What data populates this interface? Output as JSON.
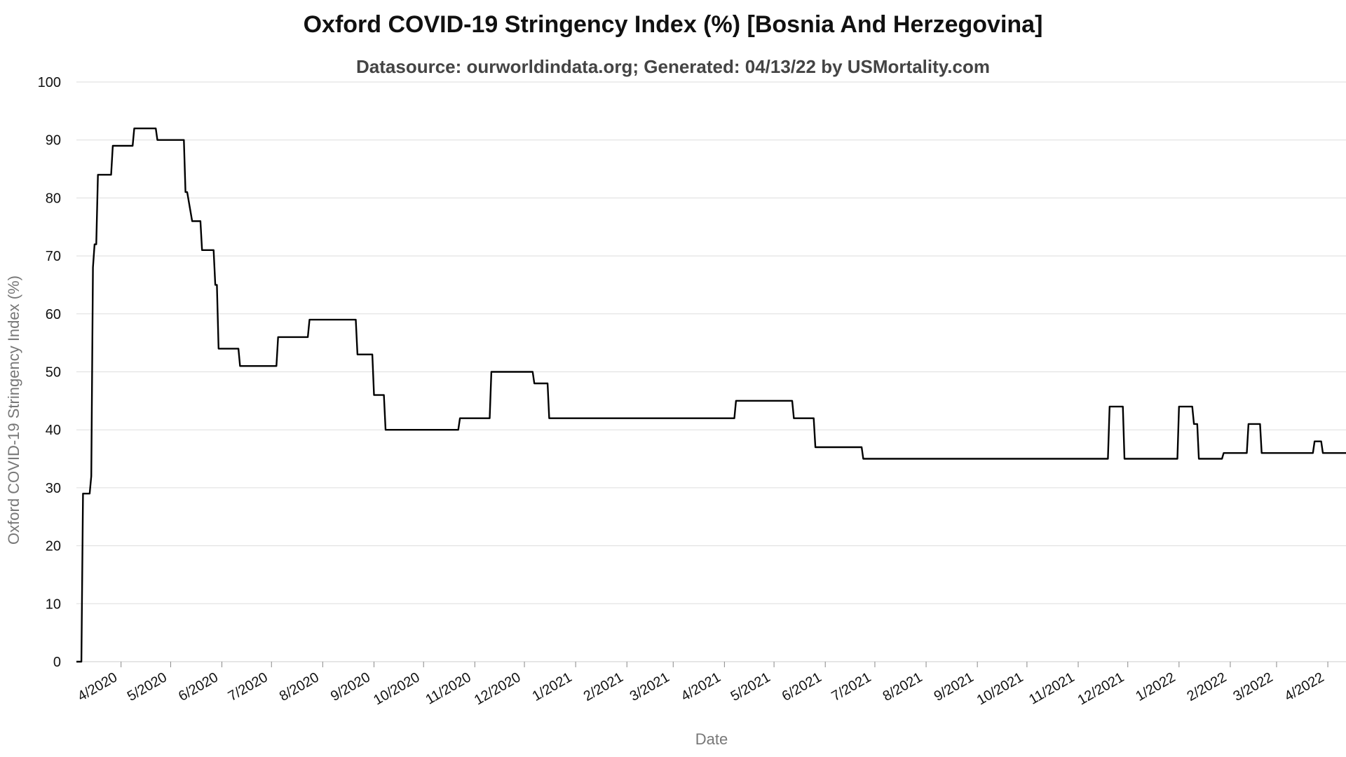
{
  "title": "Oxford COVID-19 Stringency Index (%) [Bosnia And Herzegovina]",
  "subtitle": "Datasource: ourworldindata.org; Generated: 04/13/22 by USMortality.com",
  "colors": {
    "line": "#000000",
    "grid": "#dddddd",
    "axis_title": "#777777"
  },
  "chart_data": {
    "type": "line",
    "title": "Oxford COVID-19 Stringency Index (%) [Bosnia And Herzegovina]",
    "xlabel": "Date",
    "ylabel": "Oxford COVID-19 Stringency Index (%)",
    "ylim": [
      0,
      100
    ],
    "xlim": [
      "2020-03-05",
      "2022-04-12"
    ],
    "yticks": [
      0,
      10,
      20,
      30,
      40,
      50,
      60,
      70,
      80,
      90,
      100
    ],
    "xticks": [
      {
        "date": "2020-04-01",
        "label": "4/2020"
      },
      {
        "date": "2020-05-01",
        "label": "5/2020"
      },
      {
        "date": "2020-06-01",
        "label": "6/2020"
      },
      {
        "date": "2020-07-01",
        "label": "7/2020"
      },
      {
        "date": "2020-08-01",
        "label": "8/2020"
      },
      {
        "date": "2020-09-01",
        "label": "9/2020"
      },
      {
        "date": "2020-10-01",
        "label": "10/2020"
      },
      {
        "date": "2020-11-01",
        "label": "11/2020"
      },
      {
        "date": "2020-12-01",
        "label": "12/2020"
      },
      {
        "date": "2021-01-01",
        "label": "1/2021"
      },
      {
        "date": "2021-02-01",
        "label": "2/2021"
      },
      {
        "date": "2021-03-01",
        "label": "3/2021"
      },
      {
        "date": "2021-04-01",
        "label": "4/2021"
      },
      {
        "date": "2021-05-01",
        "label": "5/2021"
      },
      {
        "date": "2021-06-01",
        "label": "6/2021"
      },
      {
        "date": "2021-07-01",
        "label": "7/2021"
      },
      {
        "date": "2021-08-01",
        "label": "8/2021"
      },
      {
        "date": "2021-09-01",
        "label": "9/2021"
      },
      {
        "date": "2021-10-01",
        "label": "10/2021"
      },
      {
        "date": "2021-11-01",
        "label": "11/2021"
      },
      {
        "date": "2021-12-01",
        "label": "12/2021"
      },
      {
        "date": "2022-01-01",
        "label": "1/2022"
      },
      {
        "date": "2022-02-01",
        "label": "2/2022"
      },
      {
        "date": "2022-03-01",
        "label": "3/2022"
      },
      {
        "date": "2022-04-01",
        "label": "4/2022"
      }
    ],
    "grid": true,
    "series": [
      {
        "points": [
          [
            "2020-03-05",
            0
          ],
          [
            "2020-03-08",
            0
          ],
          [
            "2020-03-09",
            29
          ],
          [
            "2020-03-13",
            29
          ],
          [
            "2020-03-14",
            32
          ],
          [
            "2020-03-15",
            68
          ],
          [
            "2020-03-16",
            72
          ],
          [
            "2020-03-17",
            72
          ],
          [
            "2020-03-18",
            84
          ],
          [
            "2020-03-26",
            84
          ],
          [
            "2020-03-27",
            89
          ],
          [
            "2020-04-08",
            89
          ],
          [
            "2020-04-09",
            92
          ],
          [
            "2020-04-22",
            92
          ],
          [
            "2020-04-23",
            90
          ],
          [
            "2020-05-09",
            90
          ],
          [
            "2020-05-10",
            81
          ],
          [
            "2020-05-11",
            81
          ],
          [
            "2020-05-14",
            76
          ],
          [
            "2020-05-19",
            76
          ],
          [
            "2020-05-20",
            71
          ],
          [
            "2020-05-27",
            71
          ],
          [
            "2020-05-28",
            65
          ],
          [
            "2020-05-29",
            65
          ],
          [
            "2020-05-30",
            54
          ],
          [
            "2020-06-11",
            54
          ],
          [
            "2020-06-12",
            51
          ],
          [
            "2020-07-04",
            51
          ],
          [
            "2020-07-05",
            56
          ],
          [
            "2020-07-23",
            56
          ],
          [
            "2020-07-24",
            59
          ],
          [
            "2020-08-21",
            59
          ],
          [
            "2020-08-22",
            53
          ],
          [
            "2020-08-31",
            53
          ],
          [
            "2020-09-01",
            46
          ],
          [
            "2020-09-07",
            46
          ],
          [
            "2020-09-08",
            40
          ],
          [
            "2020-10-22",
            40
          ],
          [
            "2020-10-23",
            42
          ],
          [
            "2020-11-10",
            42
          ],
          [
            "2020-11-11",
            50
          ],
          [
            "2020-12-06",
            50
          ],
          [
            "2020-12-07",
            48
          ],
          [
            "2020-12-15",
            48
          ],
          [
            "2020-12-16",
            42
          ],
          [
            "2021-04-07",
            42
          ],
          [
            "2021-04-08",
            45
          ],
          [
            "2021-05-12",
            45
          ],
          [
            "2021-05-13",
            42
          ],
          [
            "2021-05-25",
            42
          ],
          [
            "2021-05-26",
            37
          ],
          [
            "2021-06-23",
            37
          ],
          [
            "2021-06-24",
            35
          ],
          [
            "2021-11-19",
            35
          ],
          [
            "2021-11-20",
            44
          ],
          [
            "2021-11-28",
            44
          ],
          [
            "2021-11-29",
            35
          ],
          [
            "2021-12-31",
            35
          ],
          [
            "2022-01-01",
            44
          ],
          [
            "2022-01-09",
            44
          ],
          [
            "2022-01-10",
            41
          ],
          [
            "2022-01-12",
            41
          ],
          [
            "2022-01-13",
            35
          ],
          [
            "2022-01-27",
            35
          ],
          [
            "2022-01-28",
            36
          ],
          [
            "2022-02-11",
            36
          ],
          [
            "2022-02-12",
            41
          ],
          [
            "2022-02-19",
            41
          ],
          [
            "2022-02-20",
            36
          ],
          [
            "2022-03-23",
            36
          ],
          [
            "2022-03-24",
            38
          ],
          [
            "2022-03-28",
            38
          ],
          [
            "2022-03-29",
            36
          ],
          [
            "2022-04-12",
            36
          ]
        ]
      }
    ]
  }
}
